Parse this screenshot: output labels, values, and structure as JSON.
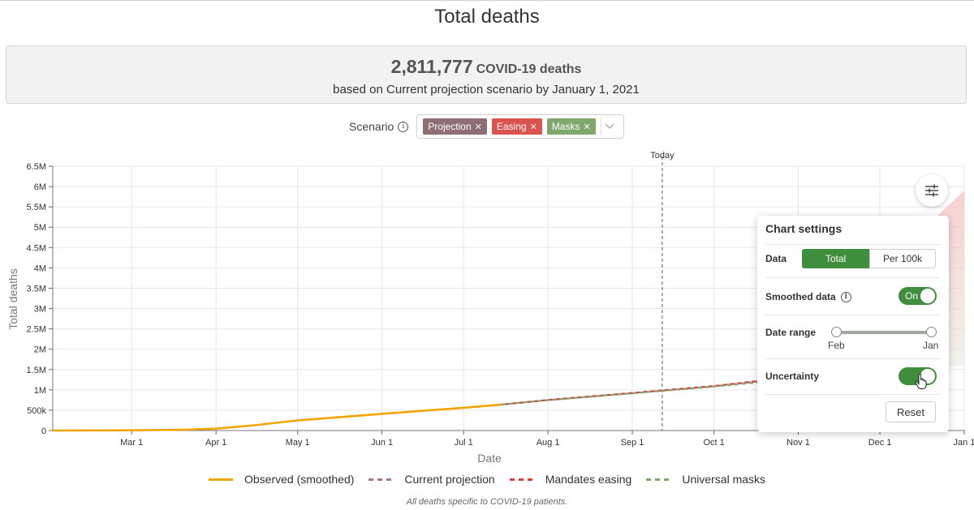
{
  "title": "Total deaths",
  "summary": {
    "count": "2,811,777",
    "unit": "COVID-19 deaths",
    "subtitle": "based on Current projection scenario by January 1, 2021"
  },
  "scenario": {
    "label": "Scenario",
    "tags": [
      {
        "label": "Projection",
        "color": "#8d6e72"
      },
      {
        "label": "Easing",
        "color": "#d9534f"
      },
      {
        "label": "Masks",
        "color": "#7fa86e"
      }
    ]
  },
  "today_label": "Today",
  "chart_data": {
    "type": "line",
    "xlabel": "Date",
    "ylabel": "Total deaths",
    "x_ticks": [
      "Mar 1",
      "Apr 1",
      "May 1",
      "Jun 1",
      "Jul 1",
      "Aug 1",
      "Sep 1",
      "Oct 1",
      "Nov 1",
      "Dec 1",
      "Jan 1"
    ],
    "y_ticks": [
      "0",
      "500k",
      "1M",
      "1.5M",
      "2M",
      "2.5M",
      "3M",
      "3.5M",
      "4M",
      "4.5M",
      "5M",
      "5.5M",
      "6M",
      "6.5M"
    ],
    "ylim": [
      0,
      6500000
    ],
    "xlim": [
      "2020-02-01",
      "2021-01-01"
    ],
    "today": "2020-09-12",
    "grid": true,
    "series": [
      {
        "name": "Observed (smoothed)",
        "color": "#f0a500",
        "dash": false,
        "points": [
          [
            "2020-02-01",
            0
          ],
          [
            "2020-03-01",
            5000
          ],
          [
            "2020-03-20",
            20000
          ],
          [
            "2020-04-01",
            45000
          ],
          [
            "2020-04-15",
            130000
          ],
          [
            "2020-05-01",
            250000
          ],
          [
            "2020-06-01",
            410000
          ],
          [
            "2020-07-01",
            560000
          ],
          [
            "2020-07-15",
            640000
          ]
        ]
      },
      {
        "name": "Current projection",
        "color": "#a97880",
        "dash": true,
        "points": [
          [
            "2020-07-15",
            640000
          ],
          [
            "2020-08-01",
            750000
          ],
          [
            "2020-09-01",
            920000
          ],
          [
            "2020-10-01",
            1090000
          ],
          [
            "2020-10-20",
            1230000
          ]
        ]
      },
      {
        "name": "Mandates easing",
        "color": "#d9403a",
        "dash": true,
        "points": [
          [
            "2020-07-15",
            640000
          ],
          [
            "2020-08-01",
            752000
          ],
          [
            "2020-09-01",
            925000
          ],
          [
            "2020-10-01",
            1095000
          ],
          [
            "2020-10-20",
            1240000
          ]
        ]
      },
      {
        "name": "Universal masks",
        "color": "#7fa86e",
        "dash": true,
        "points": [
          [
            "2020-07-15",
            640000
          ],
          [
            "2020-08-01",
            748000
          ],
          [
            "2020-09-01",
            915000
          ],
          [
            "2020-10-01",
            1080000
          ],
          [
            "2020-10-20",
            1200000
          ]
        ]
      }
    ]
  },
  "settings": {
    "title": "Chart settings",
    "data_label": "Data",
    "data_options": [
      "Total",
      "Per 100k"
    ],
    "smoothed_label": "Smoothed data",
    "smoothed_state": "On",
    "date_range_label": "Date range",
    "date_range_start": "Feb",
    "date_range_end": "Jan",
    "uncertainty_label": "Uncertainty",
    "reset_label": "Reset"
  },
  "legend": [
    "Observed (smoothed)",
    "Current projection",
    "Mandates easing",
    "Universal masks"
  ],
  "footnote": "All deaths specific to COVID-19 patients."
}
